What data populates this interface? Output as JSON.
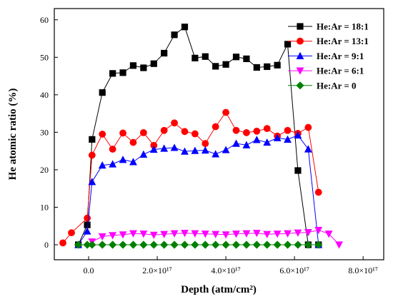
{
  "chart_data": {
    "type": "line",
    "xlabel": "Depth (atm/cm²)",
    "ylabel": "He atomic ratio (%)",
    "xlim": [
      -1e+17,
      8.6e+17
    ],
    "ylim": [
      -4,
      63
    ],
    "x_ticks": [
      {
        "value": 0,
        "label": "0.0"
      },
      {
        "value": 2e+17,
        "label": "2.0×10¹⁷"
      },
      {
        "value": 4e+17,
        "label": "4.0×10¹⁷"
      },
      {
        "value": 6e+17,
        "label": "6.0×10¹⁷"
      },
      {
        "value": 8e+17,
        "label": "8.0×10¹⁷"
      }
    ],
    "y_ticks": [
      0,
      10,
      20,
      30,
      40,
      50,
      60
    ],
    "grid": false,
    "legend_position": "top-right",
    "series": [
      {
        "name": "He:Ar = 18:1",
        "color": "#000000",
        "marker": "square",
        "x": [
          -3e+16,
          -4000000000000000.0,
          1e+16,
          4e+16,
          7e+16,
          1e+17,
          1.3e+17,
          1.6e+17,
          1.9e+17,
          2.2e+17,
          2.5e+17,
          2.8e+17,
          3.1e+17,
          3.4e+17,
          3.7e+17,
          4e+17,
          4.3e+17,
          4.6e+17,
          4.9e+17,
          5.2e+17,
          5.5e+17,
          5.8e+17,
          6.1e+17,
          6.4e+17,
          6.7e+17
        ],
        "y": [
          0,
          5.3,
          28.1,
          40.6,
          45.7,
          45.9,
          47.8,
          47.2,
          48.3,
          51.1,
          56.0,
          58.1,
          49.8,
          50.2,
          47.6,
          48.1,
          50.1,
          49.6,
          47.3,
          47.5,
          47.9,
          53.5,
          19.8,
          0,
          0
        ]
      },
      {
        "name": "He:Ar = 13:1",
        "color": "#ff0000",
        "marker": "circle",
        "x": [
          -7.5e+16,
          -5e+16,
          -4000000000000000.0,
          1e+16,
          4e+16,
          7e+16,
          1e+17,
          1.3e+17,
          1.6e+17,
          1.9e+17,
          2.2e+17,
          2.5e+17,
          2.8e+17,
          3.1e+17,
          3.4e+17,
          3.7e+17,
          4e+17,
          4.3e+17,
          4.6e+17,
          4.9e+17,
          5.2e+17,
          5.5e+17,
          5.8e+17,
          6.1e+17,
          6.4e+17,
          6.7e+17
        ],
        "y": [
          0.5,
          3.2,
          7.1,
          23.9,
          29.5,
          25.5,
          29.8,
          27.3,
          29.9,
          26.5,
          30.5,
          32.5,
          30.2,
          29.6,
          27.0,
          31.5,
          35.3,
          30.5,
          29.9,
          30.3,
          31.0,
          29.0,
          30.5,
          29.7,
          31.3,
          14.0
        ]
      },
      {
        "name": "He:Ar = 9:1",
        "color": "#0000ff",
        "marker": "triangle-up",
        "x": [
          -3e+16,
          -4000000000000000.0,
          1e+16,
          4e+16,
          7e+16,
          1e+17,
          1.3e+17,
          1.6e+17,
          1.9e+17,
          2.2e+17,
          2.5e+17,
          2.8e+17,
          3.1e+17,
          3.4e+17,
          3.7e+17,
          4e+17,
          4.3e+17,
          4.6e+17,
          4.9e+17,
          5.2e+17,
          5.5e+17,
          5.8e+17,
          6.1e+17,
          6.4e+17,
          6.7e+17
        ],
        "y": [
          0,
          3.6,
          16.8,
          21.2,
          21.5,
          22.7,
          22.1,
          24.1,
          25.4,
          25.7,
          25.9,
          24.9,
          25.1,
          25.2,
          24.2,
          25.3,
          27.0,
          26.6,
          28.0,
          27.3,
          28.5,
          28.1,
          29.2,
          25.5,
          0
        ]
      },
      {
        "name": "He:Ar = 6:1",
        "color": "#ff00ff",
        "marker": "triangle-down",
        "x": [
          1e+16,
          4e+16,
          7e+16,
          1e+17,
          1.3e+17,
          1.6e+17,
          1.9e+17,
          2.2e+17,
          2.5e+17,
          2.8e+17,
          3.1e+17,
          3.4e+17,
          3.7e+17,
          4e+17,
          4.3e+17,
          4.6e+17,
          4.9e+17,
          5.2e+17,
          5.5e+17,
          5.8e+17,
          6.1e+17,
          6.4e+17,
          6.7e+17,
          7e+17,
          7.3e+17
        ],
        "y": [
          0.8,
          2.2,
          2.5,
          2.7,
          3.0,
          2.9,
          2.6,
          2.8,
          3.0,
          3.1,
          3.0,
          2.9,
          2.8,
          2.7,
          2.9,
          3.0,
          3.1,
          2.8,
          2.9,
          3.0,
          3.2,
          3.3,
          3.9,
          2.9,
          0
        ]
      },
      {
        "name": "He:Ar = 0",
        "color": "#008000",
        "marker": "diamond",
        "x": [
          -3e+16,
          -4000000000000000.0,
          1e+16,
          4e+16,
          7e+16,
          1e+17,
          1.3e+17,
          1.6e+17,
          1.9e+17,
          2.2e+17,
          2.5e+17,
          2.8e+17,
          3.1e+17,
          3.4e+17,
          3.7e+17,
          4e+17,
          4.3e+17,
          4.6e+17,
          4.9e+17,
          5.2e+17,
          5.5e+17,
          5.8e+17,
          6.1e+17,
          6.4e+17,
          6.7e+17
        ],
        "y": [
          0,
          0,
          0,
          0,
          0,
          0,
          0,
          0,
          0,
          0,
          0,
          0,
          0,
          0,
          0,
          0,
          0,
          0,
          0,
          0,
          0,
          0,
          0,
          0,
          0
        ]
      }
    ]
  }
}
